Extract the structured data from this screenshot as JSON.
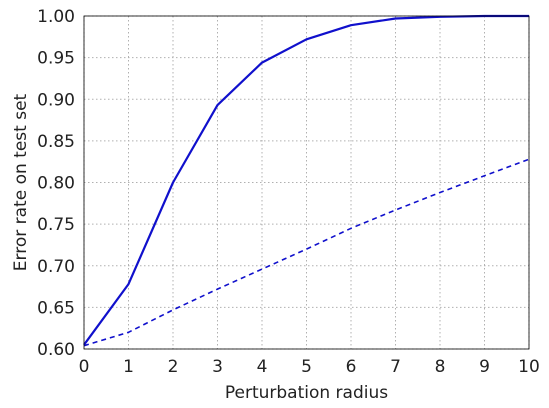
{
  "chart_data": {
    "type": "line",
    "title": "",
    "xlabel": "Perturbation radius",
    "ylabel": "Error rate on test set",
    "xlim": [
      0,
      10
    ],
    "ylim": [
      0.6,
      1.0
    ],
    "x_ticks": [
      0,
      1,
      2,
      3,
      4,
      5,
      6,
      7,
      8,
      9,
      10
    ],
    "y_ticks": [
      "0.60",
      "0.65",
      "0.70",
      "0.75",
      "0.80",
      "0.85",
      "0.90",
      "0.95",
      "1.00"
    ],
    "grid": true,
    "legend": "none",
    "series": [
      {
        "line_style": "solid",
        "color": "#1010cc",
        "x": [
          0,
          1,
          2,
          3,
          4,
          5,
          6,
          7,
          8,
          9,
          10
        ],
        "y": [
          0.605,
          0.678,
          0.8,
          0.893,
          0.944,
          0.972,
          0.989,
          0.997,
          0.999,
          1.0,
          1.0
        ]
      },
      {
        "line_style": "dashed",
        "color": "#1010cc",
        "x": [
          0,
          1,
          2,
          3,
          4,
          5,
          6,
          7,
          8,
          9,
          10
        ],
        "y": [
          0.604,
          0.62,
          0.647,
          0.672,
          0.696,
          0.72,
          0.745,
          0.767,
          0.788,
          0.808,
          0.828
        ]
      }
    ]
  }
}
